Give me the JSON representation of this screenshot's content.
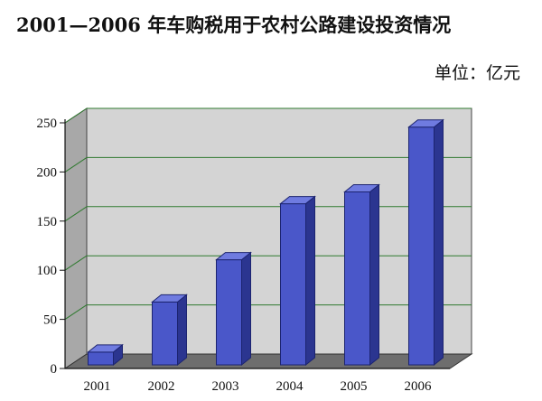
{
  "chart_data": {
    "type": "bar",
    "title": "2001—2006 年车购税用于农村公路建设投资情况",
    "unit": "单位：亿元",
    "categories": [
      "2001",
      "2002",
      "2003",
      "2004",
      "2005",
      "2006"
    ],
    "values": [
      13,
      64,
      107,
      164,
      176,
      242
    ],
    "ylim": [
      0,
      250
    ],
    "yticks": [
      "0",
      "50",
      "100",
      "150",
      "200",
      "250"
    ],
    "grid": true,
    "legend": "none",
    "style": "3d-column"
  },
  "colors": {
    "bar_front": "#4a57c9",
    "bar_side": "#2b3590",
    "bar_top": "#6f7be0",
    "back_wall": "#d4d4d4",
    "side_wall": "#a8a8a8",
    "floor": "#6e6e6e",
    "grid_line": "#2f7a2f"
  }
}
